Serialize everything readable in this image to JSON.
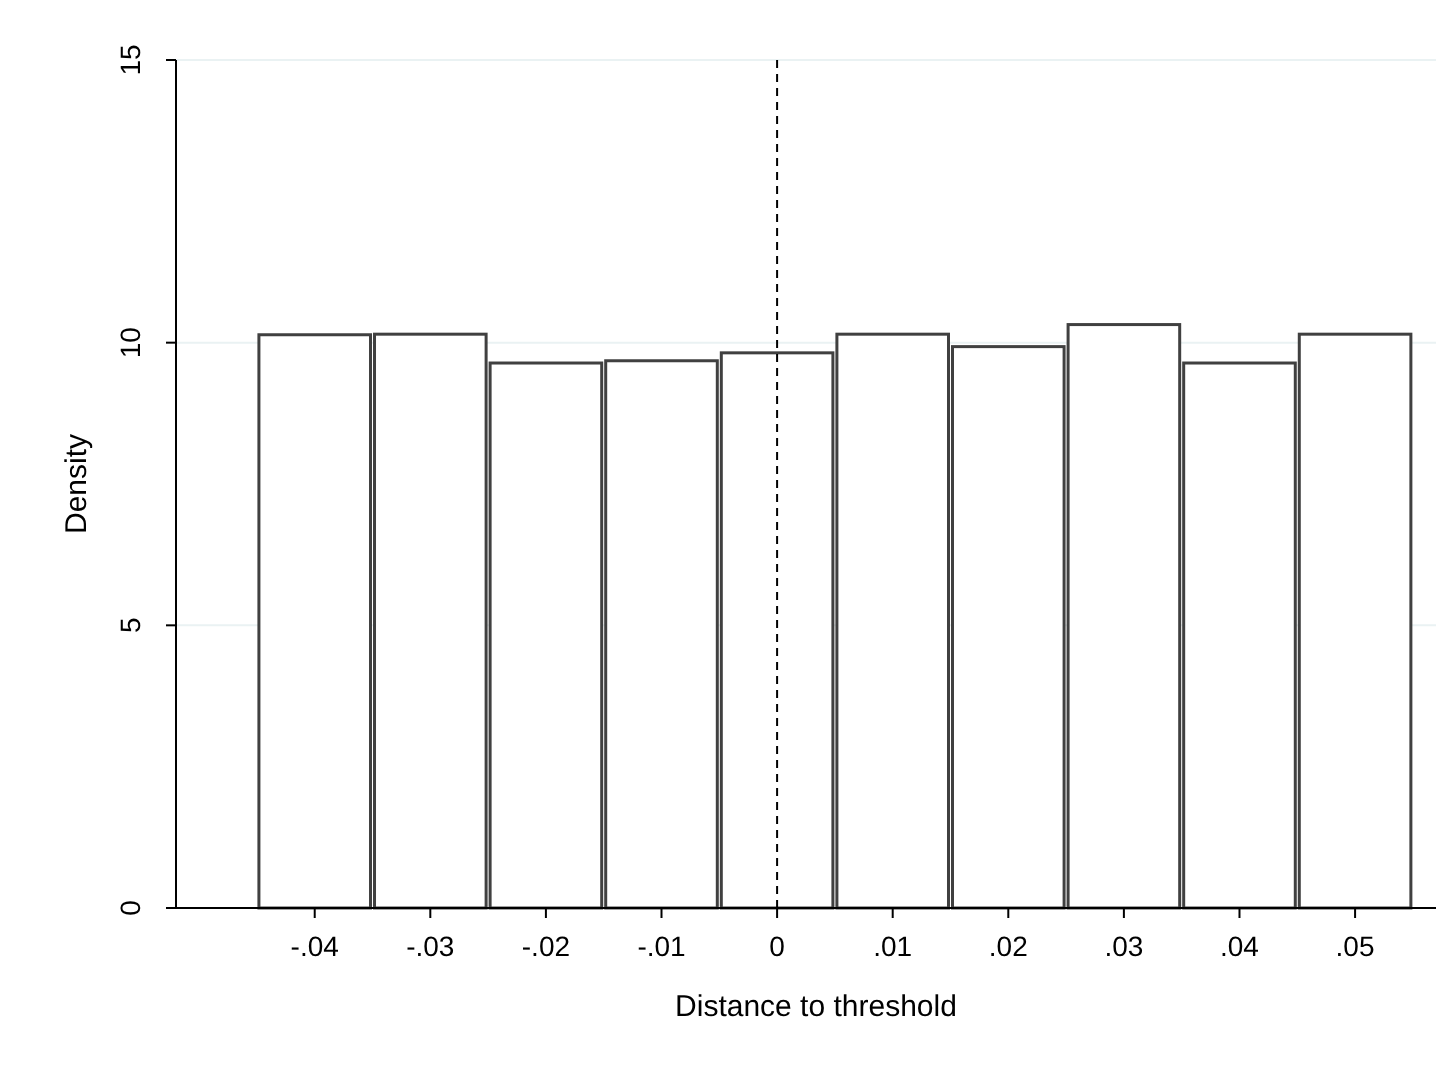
{
  "chart_data": {
    "type": "histogram",
    "xlabel": "Distance to threshold",
    "ylabel": "Density",
    "bins": [
      -0.045,
      -0.035,
      -0.025,
      -0.015,
      -0.005,
      0.005,
      0.015,
      0.025,
      0.035,
      0.045,
      0.055
    ],
    "values": [
      10.14,
      10.15,
      9.64,
      9.68,
      9.82,
      10.15,
      9.93,
      10.32,
      9.64,
      10.15
    ],
    "color": "#ffffff",
    "xlim": [
      -0.052,
      0.057
    ],
    "xticks": [
      {
        "value": -0.04,
        "label": "-.04"
      },
      {
        "value": -0.03,
        "label": "-.03"
      },
      {
        "value": -0.02,
        "label": "-.02"
      },
      {
        "value": -0.01,
        "label": "-.01"
      },
      0,
      {
        "value": 0.01,
        "label": ".01"
      },
      {
        "value": 0.02,
        "label": ".02"
      },
      {
        "value": 0.03,
        "label": ".03"
      },
      {
        "value": 0.04,
        "label": ".04"
      },
      {
        "value": 0.05,
        "label": ".05"
      }
    ],
    "ylim": [
      0,
      15
    ],
    "yticks": [
      0,
      5,
      10,
      15
    ],
    "grid": "y",
    "ref_lines": [
      {
        "axis": "x",
        "value": 0,
        "line_style": "dashed",
        "color": "#000000"
      }
    ]
  }
}
